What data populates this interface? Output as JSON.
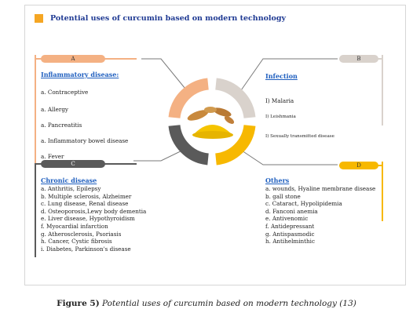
{
  "title": "Potential uses of curcumin based on modern technology",
  "colors": {
    "accent_orange": "#f5a623",
    "ring_orange_light": "#f4b183",
    "ring_grey_light": "#d9d2cc",
    "ring_yellow": "#f7b800",
    "ring_dark": "#5a5a5a",
    "heading_blue": "#1f5fbf",
    "title_blue": "#1f3a93"
  },
  "sections": {
    "A": {
      "badge": "A",
      "heading": "Inflammatory disease:",
      "items": [
        "a. Contraceptive",
        "a. Allergy",
        "a. Pancreatitis",
        "a. Inflammatory bowel disease",
        "a. Fever"
      ]
    },
    "B": {
      "badge": "B",
      "heading": "Infection",
      "items": [
        "I) Malaria",
        "I) Leishmania",
        "I) Sexually transmitted disease"
      ]
    },
    "C": {
      "badge": "C",
      "heading": "Chronic disease",
      "items": [
        "a. Anthritis, Epilepsy",
        "b. Multiple sclerosis, Alzheimer",
        "c. Lung disease, Renal disease",
        "d. Osteoporosis,Lewy body dementia",
        "e. Liver disease, Hypothyroidism",
        "f. Myocardial infarction",
        "g. Atherosclerosis, Psoriasis",
        "h. Cancer, Cystic fibrosis",
        "i. Diabetes, Parkinson's disease"
      ]
    },
    "D": {
      "badge": "D",
      "heading": "Others",
      "items": [
        "a. wounds, Hyaline membrane disease",
        "b. gall stone",
        "c. Cataract, Hypolipidemia",
        "d. Fanconi anemia",
        "e. Antivenomic",
        "f. Antidepressant",
        "g. Antispasmodic",
        "h. Antihelminthic"
      ]
    }
  },
  "caption": {
    "label": "Figure 5)",
    "text": " Potential uses of curcumin based on modern technology (13)"
  }
}
